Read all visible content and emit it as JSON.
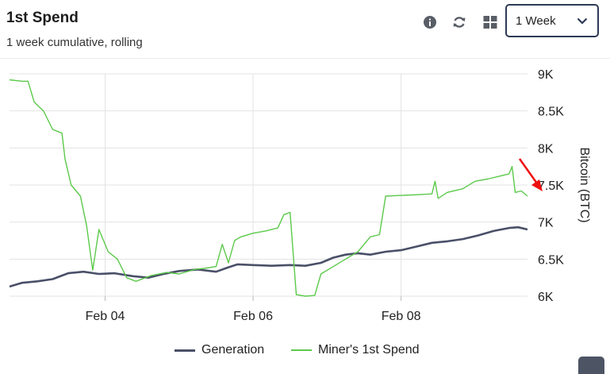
{
  "header": {
    "title": "1st Spend",
    "subtitle": "1 week cumulative, rolling",
    "range_select": {
      "selected": "1 Week"
    }
  },
  "toolbar": {
    "icons": [
      "info-icon",
      "refresh-icon",
      "grid-icon"
    ]
  },
  "colors": {
    "generation": "#4a5068",
    "miner_spend": "#5cc94b",
    "grid": "#e3e3e3",
    "annotation_arrow": "#ee1111"
  },
  "chart_data": {
    "type": "line",
    "xlabel": "",
    "ylabel": "Bitcoin (BTC)",
    "ylim": [
      6000,
      9000
    ],
    "yticks": [
      9000,
      8500,
      8000,
      7500,
      7000,
      6500,
      6000
    ],
    "ytick_labels": [
      "9K",
      "8.5K",
      "8K",
      "7.5K",
      "7K",
      "6.5K",
      "6K"
    ],
    "xlim": [
      "2025-02-02T17:00",
      "2025-02-09T17:00"
    ],
    "xticks": [
      "2025-02-04T00:00",
      "2025-02-06T00:00",
      "2025-02-08T00:00"
    ],
    "xtick_labels": [
      "Feb 04",
      "Feb 06",
      "Feb 08"
    ],
    "grid": true,
    "legend_position": "bottom",
    "series": [
      {
        "name": "Generation",
        "points": [
          [
            "2025-02-02T17:00",
            6130
          ],
          [
            "2025-02-02T21:00",
            6180
          ],
          [
            "2025-02-03T02:00",
            6200
          ],
          [
            "2025-02-03T07:00",
            6230
          ],
          [
            "2025-02-03T12:00",
            6310
          ],
          [
            "2025-02-03T17:00",
            6330
          ],
          [
            "2025-02-03T22:00",
            6300
          ],
          [
            "2025-02-04T03:00",
            6310
          ],
          [
            "2025-02-04T09:00",
            6270
          ],
          [
            "2025-02-04T14:00",
            6250
          ],
          [
            "2025-02-04T19:00",
            6300
          ],
          [
            "2025-02-05T00:00",
            6340
          ],
          [
            "2025-02-05T06:00",
            6360
          ],
          [
            "2025-02-05T12:00",
            6330
          ],
          [
            "2025-02-05T16:00",
            6390
          ],
          [
            "2025-02-05T19:00",
            6430
          ],
          [
            "2025-02-06T00:00",
            6420
          ],
          [
            "2025-02-06T06:00",
            6410
          ],
          [
            "2025-02-06T12:00",
            6420
          ],
          [
            "2025-02-06T17:00",
            6410
          ],
          [
            "2025-02-06T22:00",
            6450
          ],
          [
            "2025-02-07T02:00",
            6520
          ],
          [
            "2025-02-07T06:00",
            6560
          ],
          [
            "2025-02-07T10:00",
            6580
          ],
          [
            "2025-02-07T14:00",
            6560
          ],
          [
            "2025-02-07T19:00",
            6600
          ],
          [
            "2025-02-08T00:00",
            6620
          ],
          [
            "2025-02-08T05:00",
            6670
          ],
          [
            "2025-02-08T10:00",
            6720
          ],
          [
            "2025-02-08T15:00",
            6740
          ],
          [
            "2025-02-08T20:00",
            6770
          ],
          [
            "2025-02-09T01:00",
            6820
          ],
          [
            "2025-02-09T06:00",
            6880
          ],
          [
            "2025-02-09T11:00",
            6920
          ],
          [
            "2025-02-09T14:00",
            6930
          ],
          [
            "2025-02-09T17:00",
            6900
          ]
        ]
      },
      {
        "name": "Miner's 1st Spend",
        "points": [
          [
            "2025-02-02T17:00",
            8920
          ],
          [
            "2025-02-02T21:00",
            8900
          ],
          [
            "2025-02-02T23:00",
            8900
          ],
          [
            "2025-02-03T01:00",
            8620
          ],
          [
            "2025-02-03T04:00",
            8500
          ],
          [
            "2025-02-03T07:00",
            8250
          ],
          [
            "2025-02-03T10:00",
            8200
          ],
          [
            "2025-02-03T11:00",
            7850
          ],
          [
            "2025-02-03T13:00",
            7500
          ],
          [
            "2025-02-03T16:00",
            7350
          ],
          [
            "2025-02-03T18:00",
            6950
          ],
          [
            "2025-02-03T20:00",
            6350
          ],
          [
            "2025-02-03T22:00",
            6900
          ],
          [
            "2025-02-04T01:00",
            6600
          ],
          [
            "2025-02-04T04:00",
            6500
          ],
          [
            "2025-02-04T07:00",
            6250
          ],
          [
            "2025-02-04T10:00",
            6200
          ],
          [
            "2025-02-04T15:00",
            6280
          ],
          [
            "2025-02-04T20:00",
            6320
          ],
          [
            "2025-02-05T00:00",
            6300
          ],
          [
            "2025-02-05T05:00",
            6360
          ],
          [
            "2025-02-05T09:00",
            6380
          ],
          [
            "2025-02-05T12:00",
            6400
          ],
          [
            "2025-02-05T14:00",
            6700
          ],
          [
            "2025-02-05T16:00",
            6450
          ],
          [
            "2025-02-05T18:00",
            6750
          ],
          [
            "2025-02-05T20:00",
            6800
          ],
          [
            "2025-02-06T00:00",
            6850
          ],
          [
            "2025-02-06T04:00",
            6880
          ],
          [
            "2025-02-06T08:00",
            6920
          ],
          [
            "2025-02-06T10:00",
            7100
          ],
          [
            "2025-02-06T12:00",
            7130
          ],
          [
            "2025-02-06T14:00",
            6020
          ],
          [
            "2025-02-06T17:00",
            6000
          ],
          [
            "2025-02-06T20:00",
            6010
          ],
          [
            "2025-02-06T22:00",
            6300
          ],
          [
            "2025-02-07T02:00",
            6400
          ],
          [
            "2025-02-07T06:00",
            6500
          ],
          [
            "2025-02-07T10:00",
            6600
          ],
          [
            "2025-02-07T14:00",
            6800
          ],
          [
            "2025-02-07T17:00",
            6830
          ],
          [
            "2025-02-07T19:00",
            7350
          ],
          [
            "2025-02-08T00:00",
            7360
          ],
          [
            "2025-02-08T06:00",
            7370
          ],
          [
            "2025-02-08T10:00",
            7380
          ],
          [
            "2025-02-08T11:00",
            7550
          ],
          [
            "2025-02-08T12:00",
            7320
          ],
          [
            "2025-02-08T15:00",
            7400
          ],
          [
            "2025-02-08T20:00",
            7450
          ],
          [
            "2025-02-09T00:00",
            7550
          ],
          [
            "2025-02-09T04:00",
            7580
          ],
          [
            "2025-02-09T08:00",
            7620
          ],
          [
            "2025-02-09T11:00",
            7650
          ],
          [
            "2025-02-09T12:00",
            7750
          ],
          [
            "2025-02-09T13:00",
            7400
          ],
          [
            "2025-02-09T15:00",
            7420
          ],
          [
            "2025-02-09T17:00",
            7350
          ]
        ]
      }
    ]
  }
}
